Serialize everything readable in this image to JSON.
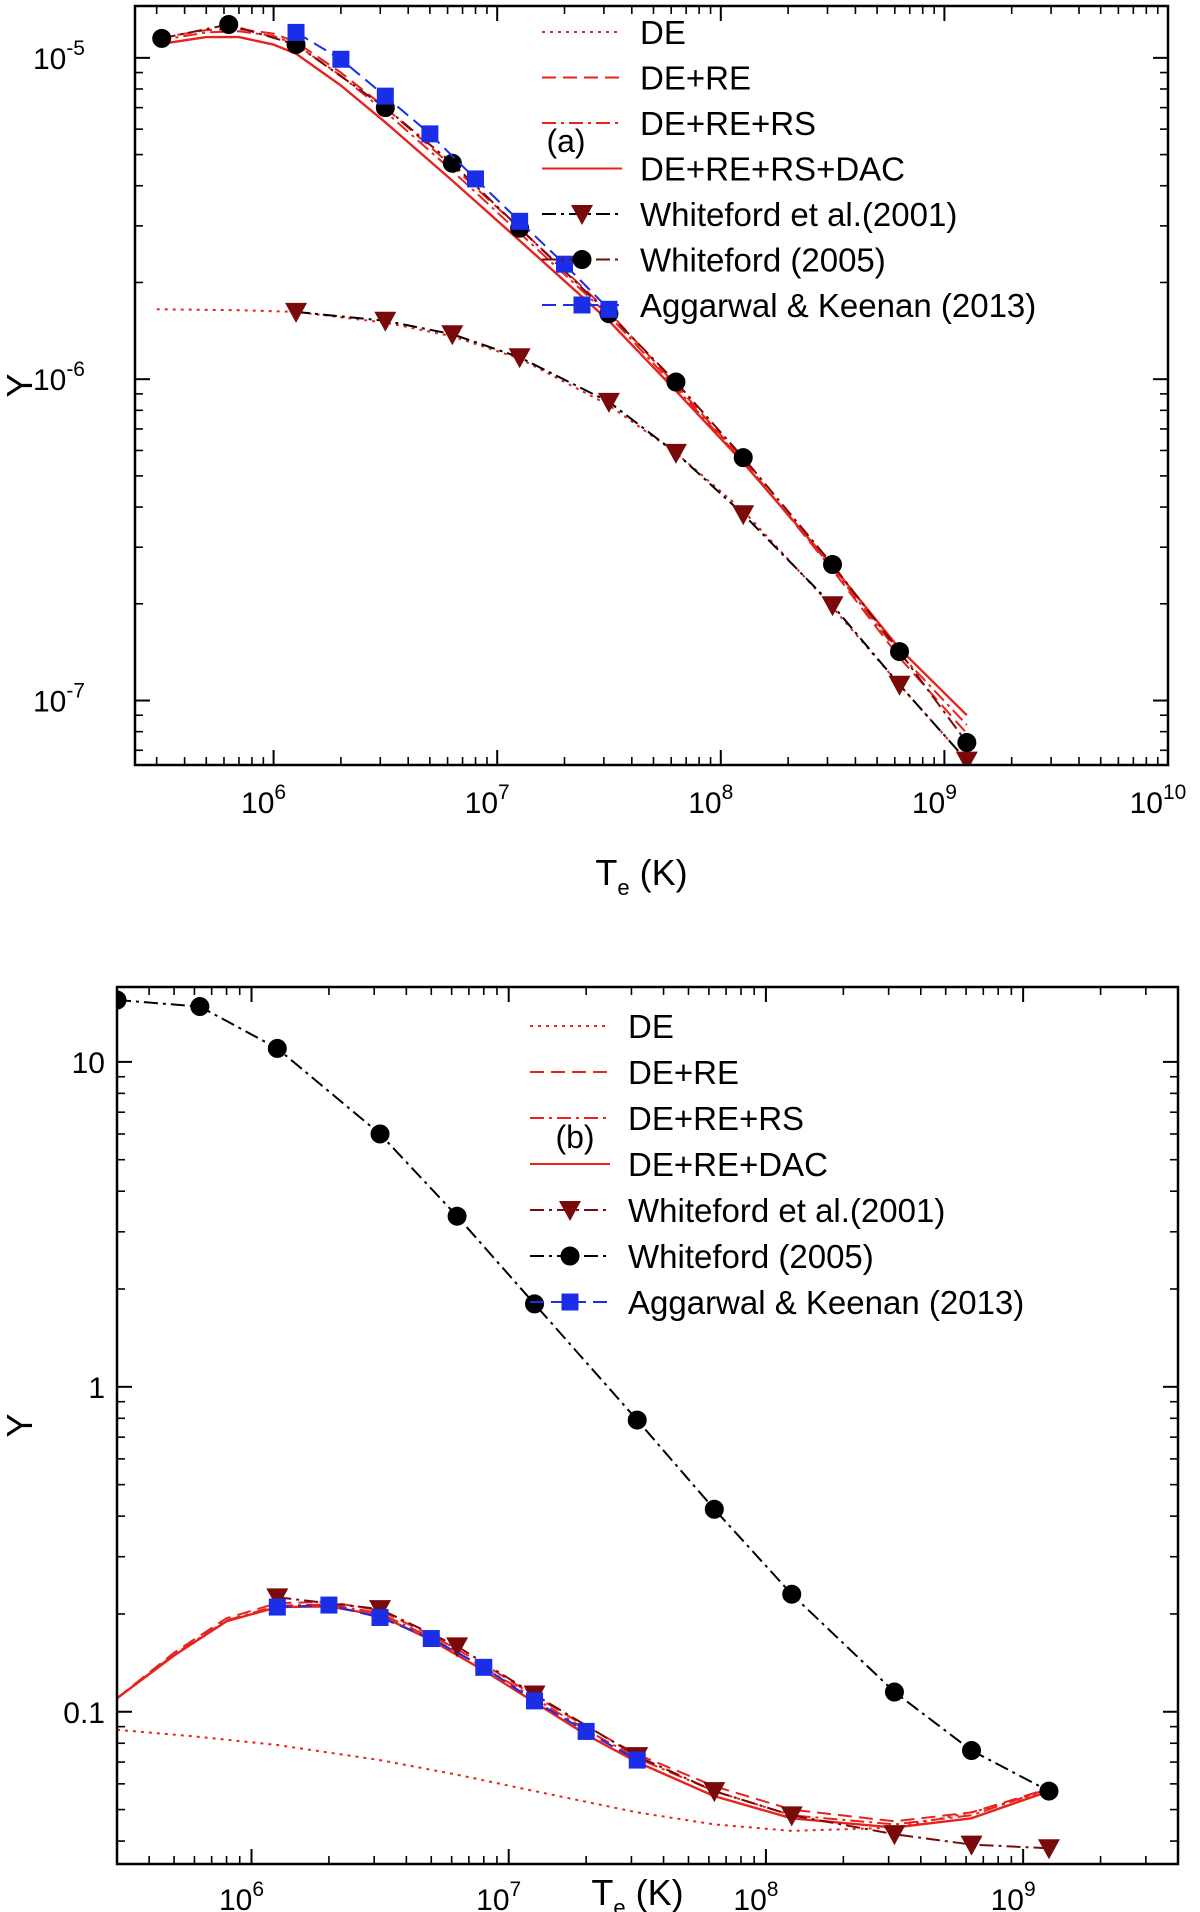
{
  "chart_data": [
    {
      "type": "line",
      "panel_label": "(a)",
      "scale": {
        "x": "log",
        "y": "log"
      },
      "xlim": [
        240000,
        10000000000
      ],
      "ylim": [
        6.3e-08,
        1.45e-05
      ],
      "x_ticks": [
        {
          "base": "10",
          "exp": "6",
          "value": 1000000
        },
        {
          "base": "10",
          "exp": "7",
          "value": 10000000
        },
        {
          "base": "10",
          "exp": "8",
          "value": 100000000
        },
        {
          "base": "10",
          "exp": "9",
          "value": 1000000000
        },
        {
          "base": "10",
          "exp": "10",
          "value": 10000000000
        }
      ],
      "y_ticks": [
        {
          "base": "10",
          "exp": "-7",
          "value": 1e-07
        },
        {
          "base": "10",
          "exp": "-6",
          "value": 1e-06
        },
        {
          "base": "10",
          "exp": "-5",
          "value": 1e-05
        }
      ],
      "xlabel": {
        "main": "T",
        "sub": "e",
        "unit": " (K)"
      },
      "ylabel": "Υ",
      "legend_position": "top-right",
      "series": [
        {
          "name": "DE",
          "style": "dotted",
          "color": "#e8231d",
          "marker": "none",
          "x": [
            300000,
            700000,
            1260000,
            3160000,
            6300000,
            12600000,
            31600000,
            63000000,
            126000000,
            316000000,
            630000000,
            1260000000
          ],
          "y": [
            1.65e-06,
            1.64e-06,
            1.62e-06,
            1.5e-06,
            1.36e-06,
            1.16e-06,
            8.3e-07,
            5.9e-07,
            3.9e-07,
            1.95e-07,
            1.12e-07,
            6.5e-08
          ]
        },
        {
          "name": "DE+RE",
          "style": "dashed",
          "color": "#e8231d",
          "marker": "none",
          "x": [
            300000,
            500000,
            700000,
            1000000,
            1260000,
            2000000,
            3160000,
            6300000,
            12600000,
            31600000,
            63000000,
            126000000,
            316000000,
            630000000,
            1260000000
          ],
          "y": [
            1.15e-05,
            1.22e-05,
            1.23e-05,
            1.19e-05,
            1.12e-05,
            9e-06,
            7e-06,
            4.6e-06,
            2.95e-06,
            1.62e-06,
            9.6e-07,
            5.6e-07,
            2.55e-07,
            1.36e-07,
            7.9e-08
          ]
        },
        {
          "name": "DE+RE+RS",
          "style": "dashdot",
          "color": "#e8231d",
          "marker": "none",
          "x": [
            300000,
            500000,
            700000,
            1000000,
            1260000,
            2000000,
            3160000,
            6300000,
            12600000,
            31600000,
            63000000,
            126000000,
            316000000,
            630000000,
            1260000000
          ],
          "y": [
            1.13e-05,
            1.2e-05,
            1.21e-05,
            1.17e-05,
            1.1e-05,
            8.8e-06,
            6.8e-06,
            4.45e-06,
            2.85e-06,
            1.58e-06,
            9.4e-07,
            5.55e-07,
            2.58e-07,
            1.4e-07,
            8.4e-08
          ]
        },
        {
          "name": "DE+RE+RS+DAC",
          "style": "solid",
          "color": "#e8231d",
          "marker": "none",
          "x": [
            300000,
            500000,
            700000,
            1000000,
            1260000,
            2000000,
            3160000,
            6300000,
            12600000,
            31600000,
            63000000,
            126000000,
            316000000,
            630000000,
            1260000000
          ],
          "y": [
            1.1e-05,
            1.16e-05,
            1.16e-05,
            1.1e-05,
            1.03e-05,
            8.2e-06,
            6.3e-06,
            4.15e-06,
            2.7e-06,
            1.52e-06,
            9.2e-07,
            5.5e-07,
            2.62e-07,
            1.45e-07,
            9e-08
          ]
        },
        {
          "name": "Whiteford et al.(2001)",
          "style": "dashdot",
          "color": "#7a0a0a",
          "marker": "triangle-down",
          "line_color": "#000000",
          "x": [
            1260000,
            3160000,
            6300000,
            12600000,
            31600000,
            63000000,
            126000000,
            316000000,
            630000000,
            1260000000
          ],
          "y": [
            1.62e-06,
            1.52e-06,
            1.38e-06,
            1.17e-06,
            8.5e-07,
            5.9e-07,
            3.8e-07,
            1.98e-07,
            1.12e-07,
            6.5e-08
          ]
        },
        {
          "name": "Whiteford (2005)",
          "style": "dashdot",
          "color": "#000000",
          "marker": "circle",
          "line_color": "#7a0a0a",
          "x": [
            316000,
            630000,
            1260000,
            3160000,
            6300000,
            12600000,
            31600000,
            63000000,
            126000000,
            316000000,
            630000000,
            1260000000
          ],
          "y": [
            1.15e-05,
            1.27e-05,
            1.1e-05,
            7e-06,
            4.7e-06,
            2.95e-06,
            1.6e-06,
            9.8e-07,
            5.7e-07,
            2.65e-07,
            1.42e-07,
            7.4e-08
          ]
        },
        {
          "name": "Aggarwal & Keenan (2013)",
          "style": "dashed",
          "color": "#1a2ee8",
          "marker": "square",
          "x": [
            1260000,
            2000000,
            3160000,
            5000000,
            8000000,
            12600000,
            20000000,
            31600000
          ],
          "y": [
            1.2e-05,
            9.9e-06,
            7.6e-06,
            5.8e-06,
            4.2e-06,
            3.1e-06,
            2.28e-06,
            1.65e-06
          ]
        }
      ]
    },
    {
      "type": "line",
      "panel_label": "(b)",
      "scale": {
        "x": "log",
        "y": "log"
      },
      "xlim": [
        300000,
        4000000000
      ],
      "ylim": [
        0.034,
        17
      ],
      "x_ticks": [
        {
          "base": "10",
          "exp": "6",
          "value": 1000000
        },
        {
          "base": "10",
          "exp": "7",
          "value": 10000000
        },
        {
          "base": "10",
          "exp": "8",
          "value": 100000000
        },
        {
          "base": "10",
          "exp": "9",
          "value": 1000000000
        }
      ],
      "y_ticks": [
        {
          "label": "0.1",
          "value": 0.1
        },
        {
          "label": "1",
          "value": 1
        },
        {
          "label": "10",
          "value": 10
        }
      ],
      "xlabel": {
        "main": "T",
        "sub": "e",
        "unit": " (K)"
      },
      "ylabel": "Υ",
      "legend_position": "top-right",
      "series": [
        {
          "name": "DE",
          "style": "dotted",
          "color": "#e8231d",
          "marker": "none",
          "x": [
            300000,
            600000,
            1260000,
            3160000,
            6300000,
            12600000,
            31600000,
            63000000,
            126000000,
            316000000,
            630000000,
            1260000000
          ],
          "y": [
            0.088,
            0.084,
            0.079,
            0.071,
            0.064,
            0.057,
            0.049,
            0.045,
            0.043,
            0.044,
            0.049,
            0.057
          ]
        },
        {
          "name": "DE+RE",
          "style": "dashed",
          "color": "#e8231d",
          "marker": "none",
          "x": [
            300000,
            500000,
            800000,
            1260000,
            2000000,
            3160000,
            5000000,
            8000000,
            12600000,
            20000000,
            31600000,
            63000000,
            126000000,
            316000000,
            630000000,
            1260000000
          ],
          "y": [
            0.11,
            0.152,
            0.194,
            0.216,
            0.218,
            0.205,
            0.172,
            0.14,
            0.112,
            0.09,
            0.074,
            0.059,
            0.05,
            0.046,
            0.049,
            0.058
          ]
        },
        {
          "name": "DE+RE+RS",
          "style": "dashdot",
          "color": "#e8231d",
          "marker": "none",
          "x": [
            300000,
            500000,
            800000,
            1260000,
            2000000,
            3160000,
            5000000,
            8000000,
            12600000,
            20000000,
            31600000,
            63000000,
            126000000,
            316000000,
            630000000,
            1260000000
          ],
          "y": [
            0.11,
            0.15,
            0.191,
            0.212,
            0.214,
            0.201,
            0.169,
            0.137,
            0.11,
            0.088,
            0.072,
            0.057,
            0.048,
            0.045,
            0.048,
            0.058
          ]
        },
        {
          "name": "DE+RE+DAC",
          "style": "solid",
          "color": "#e8231d",
          "marker": "none",
          "x": [
            300000,
            500000,
            800000,
            1260000,
            2000000,
            3160000,
            5000000,
            8000000,
            12600000,
            20000000,
            31600000,
            63000000,
            126000000,
            316000000,
            630000000,
            1260000000
          ],
          "y": [
            0.11,
            0.149,
            0.19,
            0.21,
            0.211,
            0.198,
            0.166,
            0.134,
            0.107,
            0.085,
            0.07,
            0.055,
            0.047,
            0.044,
            0.047,
            0.057
          ]
        },
        {
          "name": "Whiteford et al.(2001)",
          "style": "dashdot",
          "color": "#7a0a0a",
          "marker": "triangle-down",
          "line_color": "#7a0a0a",
          "x": [
            1260000,
            3160000,
            6300000,
            12600000,
            31600000,
            63000000,
            126000000,
            316000000,
            630000000,
            1260000000
          ],
          "y": [
            0.225,
            0.207,
            0.159,
            0.113,
            0.073,
            0.057,
            0.048,
            0.042,
            0.039,
            0.038
          ]
        },
        {
          "name": "Whiteford (2005)",
          "style": "dashdot",
          "color": "#000000",
          "marker": "circle",
          "line_color": "#000000",
          "x": [
            300000,
            630000,
            1260000,
            3160000,
            6300000,
            12600000,
            31600000,
            63000000,
            126000000,
            316000000,
            630000000,
            1260000000
          ],
          "y": [
            15.5,
            14.8,
            11.0,
            6.0,
            3.35,
            1.8,
            0.79,
            0.42,
            0.23,
            0.115,
            0.076,
            0.057
          ]
        },
        {
          "name": "Aggarwal & Keenan (2013)",
          "style": "dashed",
          "color": "#1a2ee8",
          "marker": "square",
          "x": [
            1260000,
            2000000,
            3160000,
            5000000,
            8000000,
            12600000,
            20000000,
            31600000
          ],
          "y": [
            0.21,
            0.213,
            0.195,
            0.168,
            0.137,
            0.108,
            0.087,
            0.071
          ]
        }
      ]
    }
  ]
}
